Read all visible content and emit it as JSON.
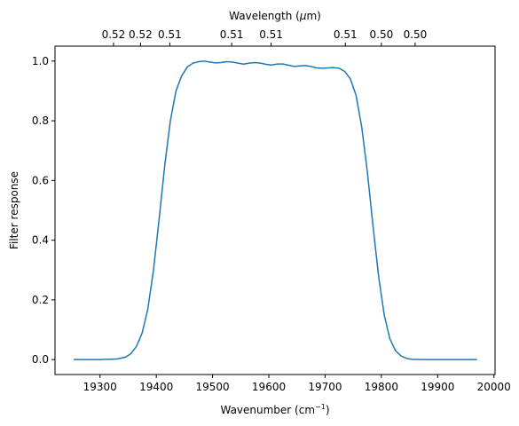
{
  "chart_data": {
    "type": "line",
    "xlabel": "Wavenumber (cm",
    "xlabel_sup": "−1",
    "xlabel_close": ")",
    "ylabel": "Filter response",
    "top_xlabel_pre": "Wavelength (",
    "top_xlabel_mu": "μ",
    "top_xlabel_post": "m)",
    "xlim": [
      19220,
      20002
    ],
    "ylim": [
      -0.05,
      1.05
    ],
    "xticks": [
      19300,
      19400,
      19500,
      19600,
      19700,
      19800,
      19900,
      20000
    ],
    "yticks": [
      0.0,
      0.2,
      0.4,
      0.6,
      0.8,
      1.0
    ],
    "ytick_labels": [
      "0.0",
      "0.2",
      "0.4",
      "0.6",
      "0.8",
      "1.0"
    ],
    "top_ticks": [
      {
        "label": "0.52",
        "x": 19324
      },
      {
        "label": "0.52",
        "x": 19372
      },
      {
        "label": "0.51",
        "x": 19424
      },
      {
        "label": "0.51",
        "x": 19534
      },
      {
        "label": "0.51",
        "x": 19604
      },
      {
        "label": "0.51",
        "x": 19736
      },
      {
        "label": "0.50",
        "x": 19800
      },
      {
        "label": "0.50",
        "x": 19860
      }
    ],
    "series": [
      {
        "color": "#1f77b4",
        "x": [
          19253,
          19300,
          19330,
          19345,
          19355,
          19365,
          19375,
          19385,
          19395,
          19405,
          19415,
          19425,
          19435,
          19445,
          19455,
          19465,
          19475,
          19485,
          19495,
          19505,
          19515,
          19525,
          19535,
          19545,
          19555,
          19565,
          19575,
          19585,
          19595,
          19605,
          19615,
          19625,
          19635,
          19645,
          19655,
          19665,
          19675,
          19685,
          19695,
          19705,
          19715,
          19725,
          19735,
          19745,
          19755,
          19765,
          19775,
          19785,
          19795,
          19805,
          19815,
          19825,
          19835,
          19845,
          19855,
          19870,
          19900,
          19970
        ],
        "y": [
          0.0,
          0.0,
          0.002,
          0.008,
          0.02,
          0.045,
          0.09,
          0.17,
          0.3,
          0.47,
          0.65,
          0.8,
          0.9,
          0.95,
          0.98,
          0.993,
          0.998,
          1.0,
          0.997,
          0.994,
          0.995,
          0.998,
          0.997,
          0.993,
          0.99,
          0.993,
          0.995,
          0.993,
          0.989,
          0.987,
          0.99,
          0.99,
          0.986,
          0.982,
          0.984,
          0.985,
          0.982,
          0.977,
          0.976,
          0.977,
          0.978,
          0.976,
          0.965,
          0.94,
          0.885,
          0.78,
          0.63,
          0.45,
          0.28,
          0.15,
          0.07,
          0.03,
          0.012,
          0.004,
          0.001,
          0.0,
          0.0,
          0.0
        ]
      }
    ]
  }
}
